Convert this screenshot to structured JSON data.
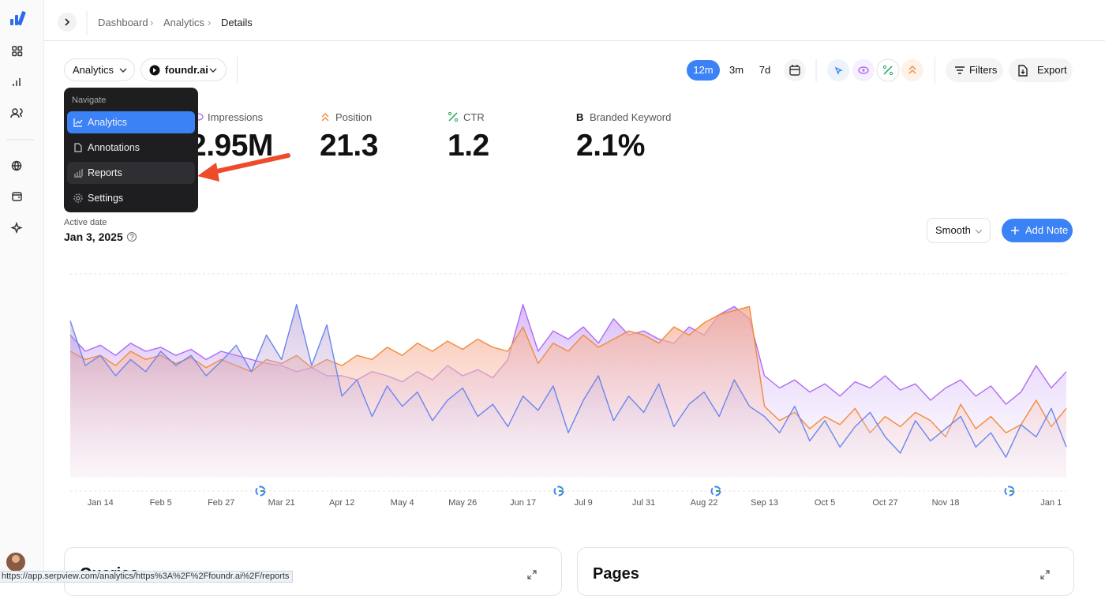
{
  "breadcrumb": [
    "Dashboard",
    "Analytics",
    "Details"
  ],
  "toolbar": {
    "view": "Analytics",
    "site": "foundr.ai",
    "ranges": [
      "12m",
      "3m",
      "7d"
    ],
    "filters": "Filters",
    "export": "Export"
  },
  "menu": {
    "heading": "Navigate",
    "items": [
      "Analytics",
      "Annotations",
      "Reports",
      "Settings"
    ]
  },
  "metrics": [
    {
      "label": "Impressions",
      "value": "2.95M"
    },
    {
      "label": "Position",
      "value": "21.3"
    },
    {
      "label": "CTR",
      "value": "1.2"
    },
    {
      "label": "Branded Keyword",
      "value": "2.1%",
      "icon": "B"
    }
  ],
  "active_date": {
    "label": "Active date",
    "value": "Jan 3, 2025"
  },
  "controls": {
    "smoothing": "Smooth",
    "add_note": "Add Note"
  },
  "chart_data": {
    "type": "area",
    "categories": [
      null,
      null,
      "Jan 14",
      null,
      null,
      null,
      "Feb 5",
      null,
      null,
      null,
      "Feb 27",
      null,
      null,
      null,
      "Mar 21",
      null,
      null,
      null,
      "Apr 12",
      null,
      null,
      null,
      "May 4",
      null,
      null,
      null,
      "May 26",
      null,
      null,
      null,
      "Jun 17",
      null,
      null,
      null,
      "Jul 9",
      null,
      null,
      null,
      "Jul 31",
      null,
      null,
      null,
      "Aug 22",
      null,
      null,
      null,
      "Sep 13",
      null,
      null,
      null,
      "Oct 5",
      null,
      null,
      null,
      "Oct 27",
      null,
      null,
      null,
      "Nov 18",
      null,
      null,
      null,
      null,
      null,
      null,
      "Jan 1",
      null
    ],
    "ylim": [
      0,
      100
    ],
    "series": [
      {
        "name": "Impressions",
        "color": "#b06bf0",
        "values": [
          70,
          62,
          65,
          60,
          66,
          62,
          64,
          60,
          63,
          58,
          62,
          60,
          58,
          56,
          55,
          52,
          54,
          50,
          50,
          48,
          52,
          50,
          47,
          52,
          48,
          55,
          50,
          53,
          49,
          58,
          85,
          62,
          72,
          68,
          74,
          66,
          78,
          70,
          72,
          68,
          66,
          74,
          70,
          80,
          84,
          78,
          50,
          44,
          48,
          42,
          46,
          40,
          47,
          44,
          50,
          43,
          46,
          38,
          44,
          48,
          40,
          45,
          36,
          42,
          55,
          44,
          52
        ]
      },
      {
        "name": "Position",
        "color": "#f28b3c",
        "values": [
          62,
          58,
          60,
          55,
          62,
          58,
          60,
          56,
          59,
          54,
          58,
          55,
          52,
          58,
          56,
          60,
          54,
          58,
          55,
          60,
          58,
          64,
          60,
          66,
          62,
          67,
          63,
          68,
          64,
          62,
          74,
          56,
          66,
          62,
          70,
          64,
          68,
          72,
          70,
          66,
          74,
          70,
          76,
          80,
          82,
          84,
          35,
          28,
          32,
          24,
          30,
          26,
          34,
          22,
          30,
          25,
          32,
          28,
          20,
          36,
          24,
          30,
          22,
          26,
          38,
          25,
          34
        ]
      },
      {
        "name": "Clicks",
        "color": "#6b86ef",
        "values": [
          77,
          55,
          60,
          50,
          58,
          52,
          62,
          55,
          60,
          50,
          57,
          65,
          52,
          70,
          58,
          85,
          55,
          75,
          40,
          48,
          30,
          45,
          35,
          42,
          28,
          38,
          44,
          30,
          36,
          25,
          40,
          33,
          45,
          22,
          38,
          50,
          28,
          40,
          32,
          46,
          25,
          36,
          42,
          30,
          48,
          35,
          30,
          22,
          35,
          18,
          28,
          15,
          25,
          32,
          20,
          12,
          28,
          18,
          24,
          30,
          15,
          22,
          10,
          26,
          20,
          34,
          15
        ]
      }
    ]
  },
  "cards": [
    "Queries",
    "Pages"
  ],
  "status_url": "https://app.serpview.com/analytics/https%3A%2F%2Ffoundr.ai%2F/reports"
}
